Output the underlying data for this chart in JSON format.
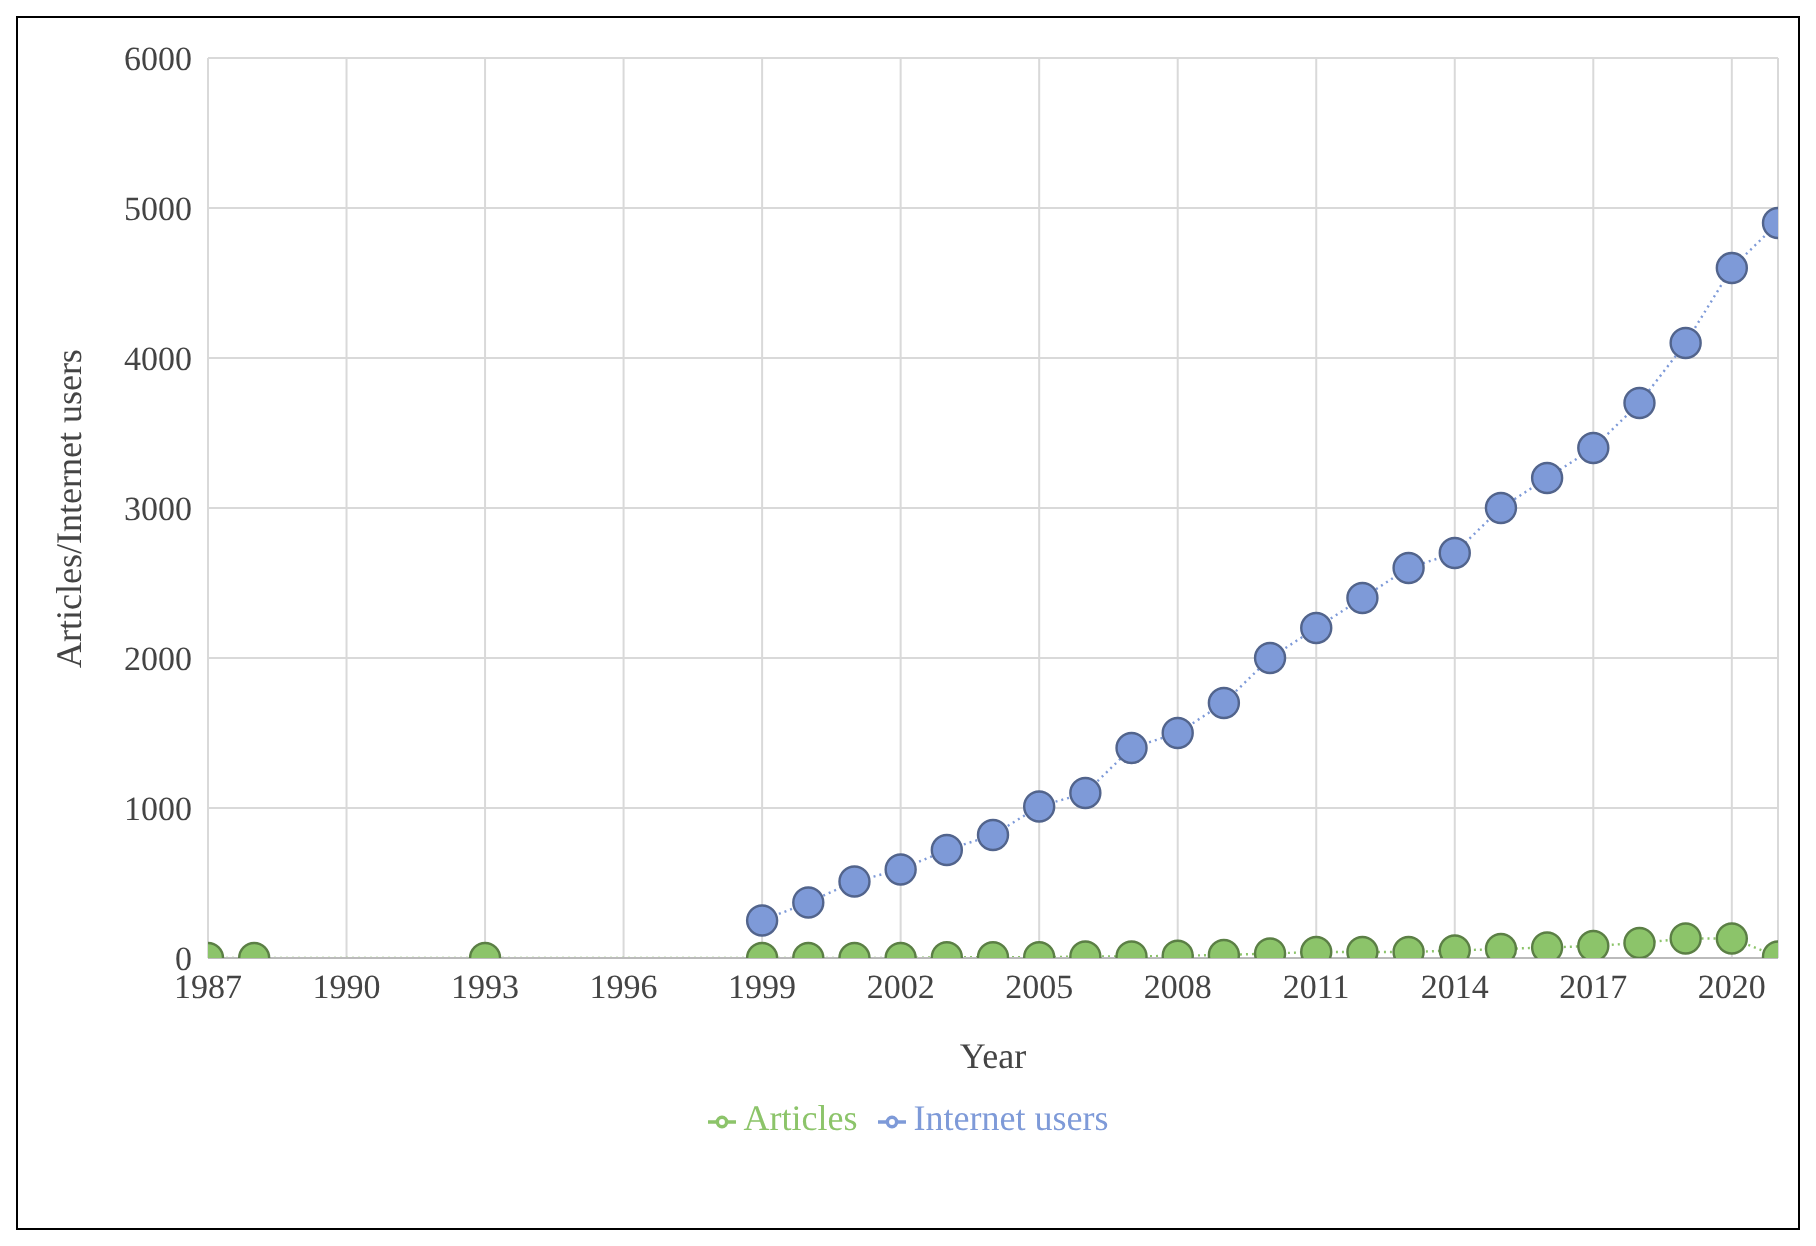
{
  "chart_data": {
    "type": "line",
    "xlabel": "Year",
    "ylabel": "Articles/Internet  users",
    "x": [
      1987,
      1988,
      1993,
      1999,
      2000,
      2001,
      2002,
      2003,
      2004,
      2005,
      2006,
      2007,
      2008,
      2009,
      2010,
      2011,
      2012,
      2013,
      2014,
      2015,
      2016,
      2017,
      2018,
      2019,
      2020,
      2021
    ],
    "series": [
      {
        "name": "Articles",
        "color": "#8cc46a",
        "values": [
          0,
          0,
          0,
          0,
          0,
          0,
          0,
          5,
          5,
          5,
          10,
          10,
          15,
          20,
          30,
          40,
          40,
          40,
          50,
          60,
          70,
          80,
          100,
          130,
          130,
          10
        ]
      },
      {
        "name": "Internet users",
        "color": "#7e9ad8",
        "x": [
          1999,
          2000,
          2001,
          2002,
          2003,
          2004,
          2005,
          2006,
          2007,
          2008,
          2009,
          2010,
          2011,
          2012,
          2013,
          2014,
          2015,
          2016,
          2017,
          2018,
          2019,
          2020,
          2021
        ],
        "values": [
          250,
          370,
          510,
          590,
          720,
          820,
          1010,
          1100,
          1400,
          1500,
          1700,
          2000,
          2200,
          2400,
          2600,
          2700,
          3000,
          3200,
          3400,
          3700,
          4100,
          4600,
          4900
        ]
      }
    ],
    "xlim": [
      1987,
      2021
    ],
    "xticks": [
      1987,
      1990,
      1993,
      1996,
      1999,
      2002,
      2005,
      2008,
      2011,
      2014,
      2017,
      2020
    ],
    "ylim": [
      0,
      6000
    ],
    "yticks": [
      0,
      1000,
      2000,
      3000,
      4000,
      5000,
      6000
    ],
    "grid": true,
    "legend": "bottom",
    "marker": "circle",
    "line_style": "dotted"
  }
}
